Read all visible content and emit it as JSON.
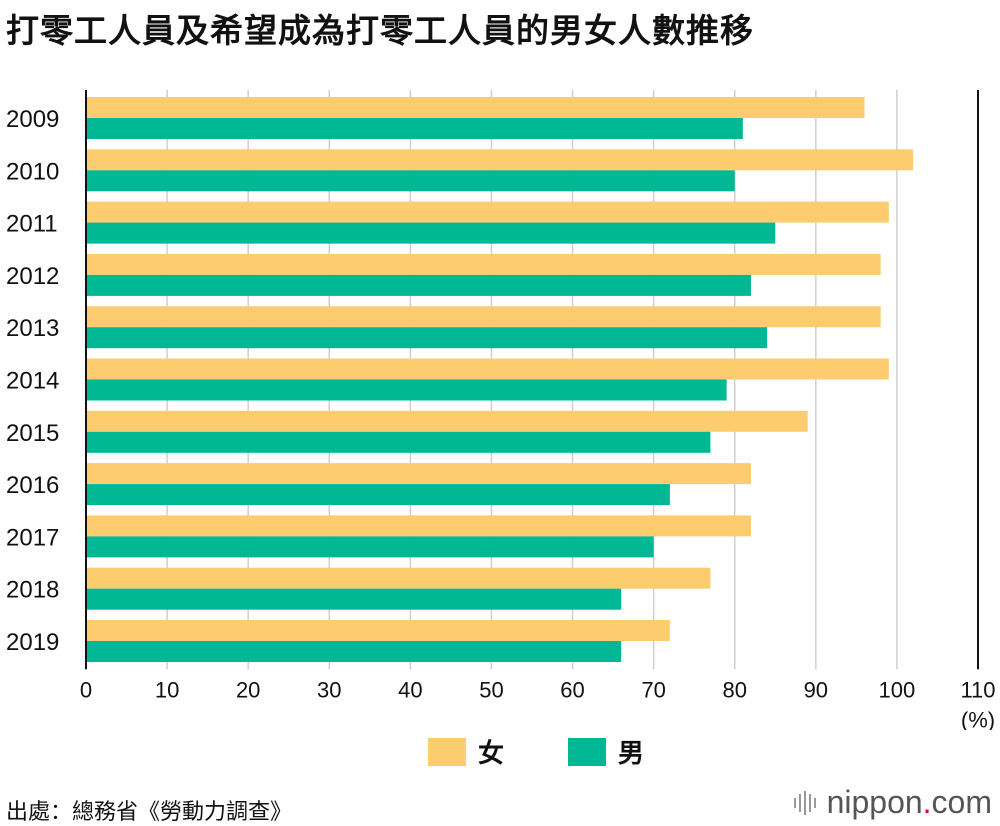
{
  "title": "打零工人員及希望成為打零工人員的男女人數推移",
  "chart_data": {
    "type": "bar",
    "orientation": "horizontal",
    "categories": [
      "2009",
      "2010",
      "2011",
      "2012",
      "2013",
      "2014",
      "2015",
      "2016",
      "2017",
      "2018",
      "2019"
    ],
    "series": [
      {
        "name": "女",
        "color": "#fccc6e",
        "values": [
          96,
          102,
          99,
          98,
          98,
          99,
          89,
          82,
          82,
          77,
          72
        ]
      },
      {
        "name": "男",
        "color": "#00b894",
        "values": [
          81,
          80,
          85,
          82,
          84,
          79,
          77,
          72,
          70,
          66,
          66
        ]
      }
    ],
    "xlim": [
      0,
      110
    ],
    "xticks": [
      0,
      10,
      20,
      30,
      40,
      50,
      60,
      70,
      80,
      90,
      100,
      110
    ],
    "xunit": "(%)",
    "grid": true
  },
  "legend": {
    "female_label": "女",
    "male_label": "男",
    "female_color": "#fccc6e",
    "male_color": "#00b894"
  },
  "source": "出處：總務省《勞動力調查》",
  "brand": {
    "name": "nippon",
    "dot": ".",
    "tld": "com"
  }
}
